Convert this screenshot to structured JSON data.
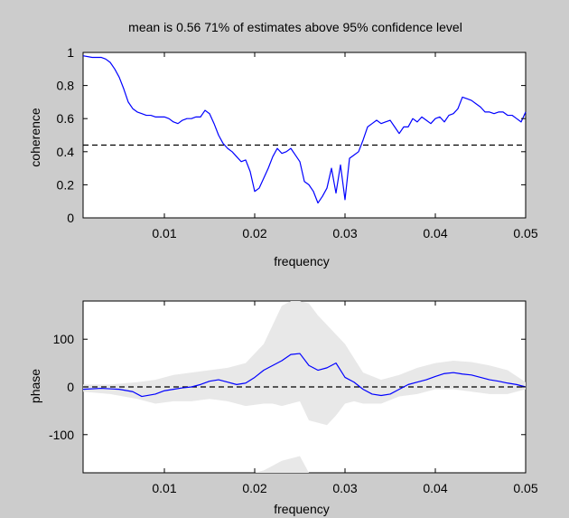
{
  "chart_data": [
    {
      "type": "line",
      "title": "mean is 0.56   71% of estimates above 95% confidence level",
      "xlabel": "frequency",
      "ylabel": "coherence",
      "xlim": [
        0.001,
        0.05
      ],
      "ylim": [
        0,
        1
      ],
      "xticks": [
        0.01,
        0.02,
        0.03,
        0.04,
        0.05
      ],
      "xtick_labels": [
        "0.01",
        "0.02",
        "0.03",
        "0.04",
        "0.05"
      ],
      "yticks": [
        0,
        0.2,
        0.4,
        0.6,
        0.8,
        1
      ],
      "ytick_labels": [
        "0",
        "0.2",
        "0.4",
        "0.6",
        "0.8",
        "1"
      ],
      "grid": false,
      "colors": {
        "line": "#0000ff",
        "threshold": "#000000"
      },
      "threshold": 0.44,
      "series": [
        {
          "x": [
            0.001,
            0.002,
            0.003,
            0.0035,
            0.004,
            0.0045,
            0.005,
            0.0055,
            0.006,
            0.0065,
            0.007,
            0.0075,
            0.008,
            0.0085,
            0.009,
            0.0095,
            0.01,
            0.0105,
            0.011,
            0.0115,
            0.012,
            0.0125,
            0.013,
            0.0135,
            0.014,
            0.0145,
            0.015,
            0.0155,
            0.016,
            0.0165,
            0.017,
            0.0175,
            0.018,
            0.0185,
            0.019,
            0.0195,
            0.02,
            0.0205,
            0.021,
            0.0215,
            0.022,
            0.0225,
            0.023,
            0.0235,
            0.024,
            0.0245,
            0.025,
            0.0255,
            0.026,
            0.0265,
            0.027,
            0.0275,
            0.028,
            0.0285,
            0.029,
            0.0295,
            0.03,
            0.0305,
            0.031,
            0.0315,
            0.032,
            0.0325,
            0.033,
            0.0335,
            0.034,
            0.0345,
            0.035,
            0.0355,
            0.036,
            0.0365,
            0.037,
            0.0375,
            0.038,
            0.0385,
            0.039,
            0.0395,
            0.04,
            0.0405,
            0.041,
            0.0415,
            0.042,
            0.0425,
            0.043,
            0.0435,
            0.044,
            0.0445,
            0.045,
            0.0455,
            0.046,
            0.0465,
            0.047,
            0.0475,
            0.048,
            0.0485,
            0.049,
            0.0495,
            0.05
          ],
          "y": [
            0.98,
            0.97,
            0.97,
            0.96,
            0.94,
            0.9,
            0.85,
            0.78,
            0.7,
            0.66,
            0.64,
            0.63,
            0.62,
            0.62,
            0.61,
            0.61,
            0.61,
            0.6,
            0.58,
            0.57,
            0.59,
            0.6,
            0.6,
            0.61,
            0.61,
            0.65,
            0.63,
            0.57,
            0.5,
            0.45,
            0.42,
            0.4,
            0.37,
            0.34,
            0.35,
            0.28,
            0.16,
            0.18,
            0.24,
            0.3,
            0.37,
            0.42,
            0.39,
            0.4,
            0.42,
            0.38,
            0.34,
            0.22,
            0.2,
            0.16,
            0.09,
            0.13,
            0.18,
            0.3,
            0.15,
            0.32,
            0.11,
            0.36,
            0.38,
            0.4,
            0.47,
            0.55,
            0.57,
            0.59,
            0.57,
            0.58,
            0.59,
            0.55,
            0.51,
            0.55,
            0.55,
            0.6,
            0.58,
            0.61,
            0.59,
            0.57,
            0.6,
            0.61,
            0.58,
            0.62,
            0.63,
            0.66,
            0.73,
            0.72,
            0.71,
            0.69,
            0.67,
            0.64,
            0.64,
            0.63,
            0.64,
            0.64,
            0.62,
            0.62,
            0.6,
            0.58,
            0.64
          ]
        }
      ]
    },
    {
      "type": "line",
      "title": "",
      "xlabel": "frequency",
      "ylabel": "phase",
      "xlim": [
        0.001,
        0.05
      ],
      "ylim": [
        -180,
        180
      ],
      "xticks": [
        0.01,
        0.02,
        0.03,
        0.04,
        0.05
      ],
      "xtick_labels": [
        "0.01",
        "0.02",
        "0.03",
        "0.04",
        "0.05"
      ],
      "yticks": [
        -100,
        0,
        100
      ],
      "ytick_labels": [
        "-100",
        "0",
        "100"
      ],
      "grid": false,
      "colors": {
        "line": "#0000ff",
        "threshold": "#000000",
        "band": "#e8e8e8"
      },
      "threshold": 0,
      "series": [
        {
          "x": [
            0.001,
            0.003,
            0.005,
            0.0065,
            0.0075,
            0.009,
            0.01,
            0.011,
            0.012,
            0.013,
            0.014,
            0.015,
            0.016,
            0.017,
            0.018,
            0.019,
            0.02,
            0.021,
            0.022,
            0.023,
            0.024,
            0.025,
            0.026,
            0.027,
            0.028,
            0.029,
            0.03,
            0.031,
            0.032,
            0.033,
            0.034,
            0.035,
            0.036,
            0.037,
            0.038,
            0.039,
            0.04,
            0.041,
            0.042,
            0.043,
            0.044,
            0.045,
            0.046,
            0.047,
            0.048,
            0.049,
            0.05
          ],
          "y": [
            -5,
            -3,
            -5,
            -10,
            -20,
            -15,
            -8,
            -5,
            -2,
            0,
            5,
            12,
            15,
            10,
            5,
            8,
            20,
            35,
            45,
            55,
            68,
            70,
            45,
            35,
            40,
            50,
            20,
            10,
            -5,
            -15,
            -18,
            -15,
            -5,
            5,
            10,
            15,
            22,
            28,
            30,
            27,
            25,
            20,
            15,
            12,
            8,
            5,
            0
          ]
        }
      ],
      "band": {
        "x": [
          0.001,
          0.004,
          0.007,
          0.009,
          0.011,
          0.013,
          0.015,
          0.017,
          0.019,
          0.021,
          0.022,
          0.023,
          0.024,
          0.025,
          0.026,
          0.027,
          0.028,
          0.029,
          0.03,
          0.031,
          0.032,
          0.034,
          0.036,
          0.038,
          0.04,
          0.042,
          0.044,
          0.046,
          0.048,
          0.05
        ],
        "upper": [
          5,
          5,
          10,
          15,
          25,
          30,
          35,
          40,
          50,
          90,
          130,
          170,
          180,
          180,
          175,
          150,
          130,
          110,
          90,
          60,
          30,
          15,
          25,
          40,
          50,
          55,
          52,
          45,
          35,
          10
        ],
        "lower": [
          -10,
          -15,
          -25,
          -35,
          -30,
          -30,
          -25,
          -30,
          -40,
          -35,
          -35,
          -40,
          -35,
          -30,
          -70,
          -75,
          -80,
          -60,
          -35,
          -30,
          -35,
          -35,
          -20,
          -15,
          -5,
          -5,
          -10,
          -15,
          -15,
          -5
        ]
      },
      "wrap_band": {
        "x": [
          0.02,
          0.021,
          0.022,
          0.023,
          0.024,
          0.025,
          0.026,
          0.027
        ],
        "upper": [
          -180,
          -175,
          -165,
          -155,
          -150,
          -145,
          -180,
          -180
        ]
      }
    }
  ]
}
